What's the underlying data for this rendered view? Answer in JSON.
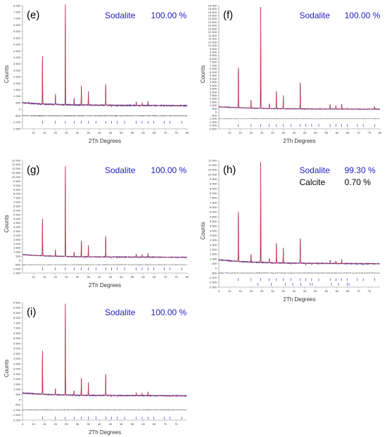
{
  "colors": {
    "observed": "#1a1aa8",
    "calculated": "#d23c3c",
    "difference": "#555555",
    "phase": "#2020c8",
    "phase2": "#000000"
  },
  "chart_data": [
    {
      "type": "line",
      "label": "(e)",
      "xlabel": "2Th Degrees",
      "ylabel": "Counts",
      "xlim": [
        5,
        80
      ],
      "ylim": [
        -1500,
        8000
      ],
      "xticks": [
        "10",
        "15",
        "20",
        "25",
        "30",
        "35",
        "40",
        "45",
        "50",
        "55",
        "60",
        "65",
        "70",
        "75",
        "80"
      ],
      "yticks": [
        "8 000",
        "7 500",
        "7 000",
        "6 500",
        "6 000",
        "5 500",
        "5 000",
        "4 500",
        "4 000",
        "3 500",
        "3 000",
        "2 500",
        "2 000",
        "1 500",
        "1 000",
        "500",
        "0",
        "-500",
        "-1 000",
        "-1 500"
      ],
      "phases": [
        {
          "name": "Sodalite",
          "value": "100.00 %"
        }
      ],
      "background": [
        [
          5,
          500
        ],
        [
          15,
          400
        ],
        [
          30,
          330
        ],
        [
          55,
          300
        ],
        [
          80,
          280
        ]
      ],
      "peaks": [
        [
          14.1,
          4300
        ],
        [
          20.0,
          1200
        ],
        [
          24.5,
          8100
        ],
        [
          28.5,
          900
        ],
        [
          31.8,
          1900
        ],
        [
          35.0,
          1400
        ],
        [
          38.5,
          350
        ],
        [
          42.9,
          2000
        ],
        [
          45.5,
          250
        ],
        [
          48.2,
          250
        ],
        [
          51.5,
          320
        ],
        [
          56.8,
          600
        ],
        [
          59.5,
          520
        ],
        [
          62.2,
          620
        ],
        [
          64.8,
          350
        ],
        [
          69.5,
          300
        ],
        [
          72.2,
          250
        ],
        [
          77.5,
          260
        ]
      ],
      "diff_offset": -500,
      "tick_row": -1000
    },
    {
      "type": "line",
      "label": "(f)",
      "xlabel": "2Th Degrees",
      "ylabel": "Counts",
      "xlim": [
        5,
        80
      ],
      "ylim": [
        -2500,
        16000
      ],
      "xticks": [
        "10",
        "15",
        "20",
        "25",
        "30",
        "35",
        "40",
        "45",
        "50",
        "55",
        "60",
        "65",
        "70",
        "75",
        "80"
      ],
      "yticks": [
        "16 000",
        "15 500",
        "15 000",
        "14 500",
        "14 000",
        "13 500",
        "13 000",
        "12 500",
        "12 000",
        "11 500",
        "11 000",
        "10 500",
        "10 000",
        "9 500",
        "9 000",
        "8 500",
        "8 000",
        "7 500",
        "7 000",
        "6 500",
        "6 000",
        "5 500",
        "5 000",
        "4 500",
        "4 000",
        "3 500",
        "3 000",
        "2 500",
        "2 000",
        "1 500",
        "1 000",
        "500",
        "0",
        "-500",
        "-1 000",
        "-1 500",
        "-2 000",
        "-2 500"
      ],
      "phases": [
        {
          "name": "Sodalite",
          "value": "100.00 %"
        }
      ],
      "background": [
        [
          5,
          800
        ],
        [
          15,
          650
        ],
        [
          30,
          520
        ],
        [
          55,
          470
        ],
        [
          80,
          440
        ]
      ],
      "peaks": [
        [
          14.1,
          7000
        ],
        [
          20.0,
          1800
        ],
        [
          24.5,
          15800
        ],
        [
          28.5,
          1300
        ],
        [
          31.8,
          3300
        ],
        [
          35.0,
          2500
        ],
        [
          38.5,
          500
        ],
        [
          42.9,
          4600
        ],
        [
          45.5,
          400
        ],
        [
          48.2,
          420
        ],
        [
          51.5,
          520
        ],
        [
          56.8,
          1200
        ],
        [
          59.5,
          1000
        ],
        [
          62.2,
          1250
        ],
        [
          64.8,
          600
        ],
        [
          69.5,
          480
        ],
        [
          72.2,
          380
        ],
        [
          77.5,
          900
        ]
      ],
      "diff_offset": -1000,
      "tick_row": -2000
    },
    {
      "type": "line",
      "label": "(g)",
      "xlabel": "2Th Degrees",
      "ylabel": "Counts",
      "xlim": [
        5,
        80
      ],
      "ylim": [
        -1500,
        12000
      ],
      "xticks": [
        "10",
        "15",
        "20",
        "25",
        "30",
        "35",
        "40",
        "45",
        "50",
        "55",
        "60",
        "65",
        "70",
        "75",
        "80"
      ],
      "yticks": [
        "12 000",
        "11 500",
        "11 000",
        "10 500",
        "10 000",
        "9 500",
        "9 000",
        "8 500",
        "8 000",
        "7 500",
        "7 000",
        "6 500",
        "6 000",
        "5 500",
        "5 000",
        "4 500",
        "4 000",
        "3 500",
        "3 000",
        "2 500",
        "2 000",
        "1 500",
        "1 000",
        "500",
        "0",
        "-500",
        "-1 000",
        "-1 500"
      ],
      "phases": [
        {
          "name": "Sodalite",
          "value": "100.00 %"
        }
      ],
      "background": [
        [
          5,
          700
        ],
        [
          15,
          560
        ],
        [
          30,
          450
        ],
        [
          55,
          410
        ],
        [
          80,
          390
        ]
      ],
      "peaks": [
        [
          14.1,
          5200
        ],
        [
          20.0,
          1300
        ],
        [
          24.5,
          11300
        ],
        [
          28.5,
          1000
        ],
        [
          31.8,
          2500
        ],
        [
          35.0,
          1800
        ],
        [
          38.5,
          420
        ],
        [
          42.9,
          3000
        ],
        [
          45.5,
          330
        ],
        [
          48.2,
          330
        ],
        [
          51.5,
          400
        ],
        [
          56.8,
          800
        ],
        [
          59.5,
          700
        ],
        [
          62.2,
          850
        ],
        [
          64.8,
          450
        ],
        [
          69.5,
          380
        ],
        [
          72.2,
          330
        ],
        [
          77.5,
          400
        ]
      ],
      "diff_offset": -500,
      "tick_row": -1000
    },
    {
      "type": "line",
      "label": "(h)",
      "xlabel": "2Th Degrees",
      "ylabel": "Counts",
      "xlim": [
        5,
        80
      ],
      "ylim": [
        -2000,
        11500
      ],
      "xticks": [
        "5",
        "10",
        "15",
        "20",
        "25",
        "30",
        "35",
        "40",
        "45",
        "50",
        "55",
        "60",
        "65",
        "70",
        "75"
      ],
      "yticks": [
        "11 500",
        "11 000",
        "10 500",
        "10 000",
        "9 500",
        "9 000",
        "8 500",
        "8 000",
        "7 500",
        "7 000",
        "6 500",
        "6 000",
        "5 500",
        "5 000",
        "4 500",
        "4 000",
        "3 500",
        "3 000",
        "2 500",
        "2 000",
        "1 500",
        "1 000",
        "500",
        "0",
        "-500",
        "-1 000",
        "-1 500",
        "-2 000"
      ],
      "phases": [
        {
          "name": "Sodalite",
          "value": "99.30 %"
        },
        {
          "name": "Calcite",
          "value": "0.70 %"
        }
      ],
      "background": [
        [
          5,
          900
        ],
        [
          15,
          720
        ],
        [
          30,
          580
        ],
        [
          55,
          520
        ],
        [
          80,
          490
        ]
      ],
      "peaks": [
        [
          14.1,
          6300
        ],
        [
          20.0,
          1500
        ],
        [
          24.5,
          11300
        ],
        [
          28.5,
          1100
        ],
        [
          31.8,
          2800
        ],
        [
          35.0,
          2200
        ],
        [
          38.5,
          480
        ],
        [
          42.9,
          3300
        ],
        [
          45.5,
          380
        ],
        [
          48.2,
          380
        ],
        [
          51.5,
          450
        ],
        [
          56.8,
          900
        ],
        [
          59.5,
          800
        ],
        [
          62.2,
          950
        ],
        [
          64.8,
          520
        ],
        [
          69.5,
          430
        ],
        [
          72.2,
          360
        ],
        [
          77.5,
          420
        ]
      ],
      "diff_offset": -500,
      "tick_row": -1200,
      "tick_row2": -1700
    },
    {
      "type": "line",
      "label": "(i)",
      "xlabel": "2Th Degrees",
      "ylabel": "Counts",
      "xlim": [
        5,
        80
      ],
      "ylim": [
        -2000,
        9500
      ],
      "xticks": [
        "5",
        "10",
        "15",
        "20",
        "25",
        "30",
        "35",
        "40",
        "45",
        "50",
        "55",
        "60",
        "65",
        "70",
        "75"
      ],
      "yticks": [
        "9 500",
        "9 000",
        "8 500",
        "8 000",
        "7 500",
        "7 000",
        "6 500",
        "6 000",
        "5 500",
        "5 000",
        "4 500",
        "4 000",
        "3 500",
        "3 000",
        "2 500",
        "2 000",
        "1 500",
        "1 000",
        "500",
        "0",
        "-500",
        "-1 000",
        "-1 500",
        "-2 000"
      ],
      "phases": [
        {
          "name": "Sodalite",
          "value": "100.00 %"
        }
      ],
      "background": [
        [
          5,
          650
        ],
        [
          15,
          520
        ],
        [
          30,
          430
        ],
        [
          55,
          400
        ],
        [
          80,
          380
        ]
      ],
      "peaks": [
        [
          14.1,
          5000
        ],
        [
          20.0,
          1100
        ],
        [
          24.5,
          9400
        ],
        [
          28.5,
          900
        ],
        [
          31.8,
          2200
        ],
        [
          35.0,
          1700
        ],
        [
          38.5,
          380
        ],
        [
          42.9,
          2600
        ],
        [
          45.5,
          300
        ],
        [
          48.2,
          300
        ],
        [
          51.5,
          380
        ],
        [
          56.8,
          700
        ],
        [
          59.5,
          620
        ],
        [
          62.2,
          760
        ],
        [
          64.8,
          420
        ],
        [
          69.5,
          350
        ],
        [
          72.2,
          300
        ],
        [
          77.5,
          380
        ]
      ],
      "diff_offset": -1000,
      "tick_row": -1800
    }
  ]
}
